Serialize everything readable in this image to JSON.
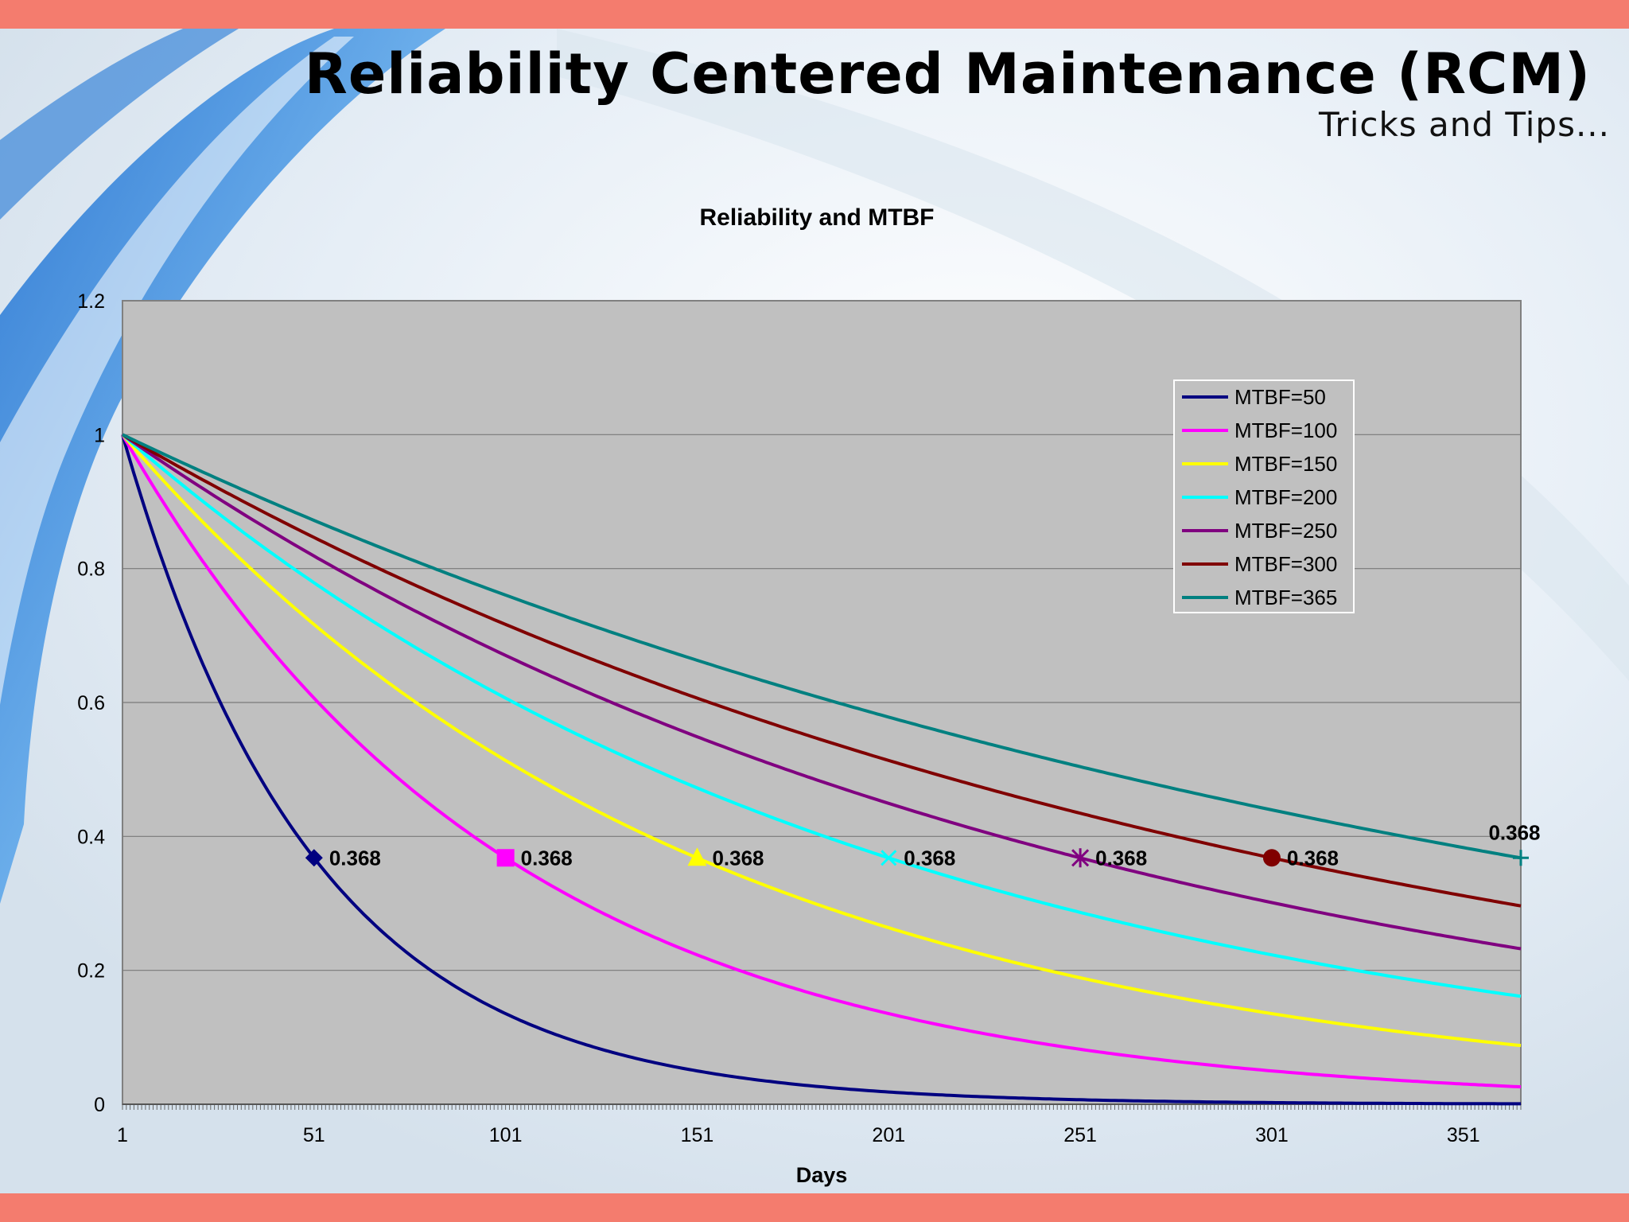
{
  "slide": {
    "title": "Reliability Centered Maintenance (RCM)",
    "subtitle": "Tricks and Tips..."
  },
  "colors": {
    "accent_bar": "#f47c6e",
    "plot_background": "#c0c0c0"
  },
  "chart_data": {
    "type": "line",
    "title": "Reliability and MTBF",
    "xlabel": "Days",
    "ylabel": "",
    "xlim": [
      1,
      366
    ],
    "ylim": [
      0,
      1.2
    ],
    "x_ticks": [
      "1",
      "51",
      "101",
      "151",
      "201",
      "251",
      "301",
      "351"
    ],
    "y_ticks": [
      "0",
      "0.2",
      "0.4",
      "0.6",
      "0.8",
      "1",
      "1.2"
    ],
    "grid": true,
    "legend_position": "top-right",
    "function": "R(t) = exp(-t / MTBF)",
    "series": [
      {
        "name": "MTBF=50",
        "mtbf": 50,
        "color": "#000080",
        "marker": "diamond",
        "marker_x": 50,
        "marker_value": 0.368,
        "label": "0.368"
      },
      {
        "name": "MTBF=100",
        "mtbf": 100,
        "color": "#ff00ff",
        "marker": "square",
        "marker_x": 100,
        "marker_value": 0.368,
        "label": "0.368"
      },
      {
        "name": "MTBF=150",
        "mtbf": 150,
        "color": "#ffff00",
        "marker": "triangle",
        "marker_x": 150,
        "marker_value": 0.368,
        "label": "0.368"
      },
      {
        "name": "MTBF=200",
        "mtbf": 200,
        "color": "#00ffff",
        "marker": "x",
        "marker_x": 200,
        "marker_value": 0.368,
        "label": "0.368"
      },
      {
        "name": "MTBF=250",
        "mtbf": 250,
        "color": "#800080",
        "marker": "star",
        "marker_x": 250,
        "marker_value": 0.368,
        "label": "0.368"
      },
      {
        "name": "MTBF=300",
        "mtbf": 300,
        "color": "#800000",
        "marker": "circle",
        "marker_x": 300,
        "marker_value": 0.368,
        "label": "0.368"
      },
      {
        "name": "MTBF=365",
        "mtbf": 365,
        "color": "#008080",
        "marker": "plus",
        "marker_x": 365,
        "marker_value": 0.368,
        "label": "0.368"
      }
    ]
  }
}
